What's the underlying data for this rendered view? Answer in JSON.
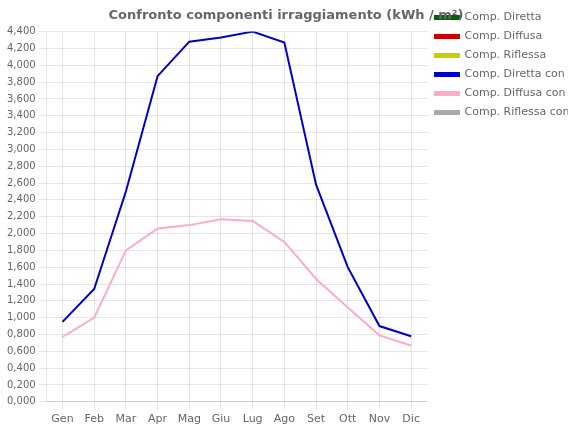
{
  "chart_data": {
    "type": "line",
    "title": "Confronto componenti irraggiamento (kWh / m²)",
    "categories": [
      "Gen",
      "Feb",
      "Mar",
      "Apr",
      "Mag",
      "Giu",
      "Lug",
      "Ago",
      "Set",
      "Ott",
      "Nov",
      "Dic"
    ],
    "series": [
      {
        "name": "Comp. Diretta",
        "color": "#006600",
        "values": [
          null,
          null,
          null,
          null,
          null,
          null,
          null,
          null,
          null,
          null,
          null,
          null
        ]
      },
      {
        "name": "Comp. Diffusa",
        "color": "#cc0000",
        "values": [
          null,
          null,
          null,
          null,
          null,
          null,
          null,
          null,
          null,
          null,
          null,
          null
        ]
      },
      {
        "name": "Comp. Riflessa",
        "color": "#cccc00",
        "values": [
          null,
          null,
          null,
          null,
          null,
          null,
          null,
          null,
          null,
          null,
          null,
          null
        ]
      },
      {
        "name": "Comp. Diretta con PO",
        "color": "#0000cc",
        "values": [
          950,
          1340,
          2500,
          3870,
          4280,
          4330,
          4400,
          4270,
          2580,
          1600,
          900,
          780
        ]
      },
      {
        "name": "Comp. Diffusa con PO",
        "color": "#ffaacc",
        "values": [
          770,
          1000,
          1800,
          2060,
          2100,
          2170,
          2150,
          1900,
          1460,
          1120,
          790,
          670
        ]
      },
      {
        "name": "Comp. Riflessa con PO",
        "color": "#aaaaaa",
        "values": [
          null,
          null,
          null,
          null,
          null,
          null,
          null,
          null,
          null,
          null,
          null,
          null
        ]
      }
    ],
    "ylim": [
      0,
      4400
    ],
    "yticks": [
      {
        "value": 0,
        "label": "0,000"
      },
      {
        "value": 200,
        "label": "0,200"
      },
      {
        "value": 400,
        "label": "0,400"
      },
      {
        "value": 600,
        "label": "0,600"
      },
      {
        "value": 800,
        "label": "0,800"
      },
      {
        "value": 1000,
        "label": "1,000"
      },
      {
        "value": 1200,
        "label": "1,200"
      },
      {
        "value": 1400,
        "label": "1,400"
      },
      {
        "value": 1600,
        "label": "1,600"
      },
      {
        "value": 1800,
        "label": "1,800"
      },
      {
        "value": 2000,
        "label": "2,000"
      },
      {
        "value": 2200,
        "label": "2,200"
      },
      {
        "value": 2400,
        "label": "2,400"
      },
      {
        "value": 2600,
        "label": "2,600"
      },
      {
        "value": 2800,
        "label": "2,800"
      },
      {
        "value": 3000,
        "label": "3,000"
      },
      {
        "value": 3200,
        "label": "3,200"
      },
      {
        "value": 3400,
        "label": "3,400"
      },
      {
        "value": 3600,
        "label": "3,600"
      },
      {
        "value": 3800,
        "label": "3,800"
      },
      {
        "value": 4000,
        "label": "4,000"
      },
      {
        "value": 4200,
        "label": "4,200"
      },
      {
        "value": 4400,
        "label": "4,400"
      }
    ],
    "grid": true,
    "legend": "right"
  }
}
